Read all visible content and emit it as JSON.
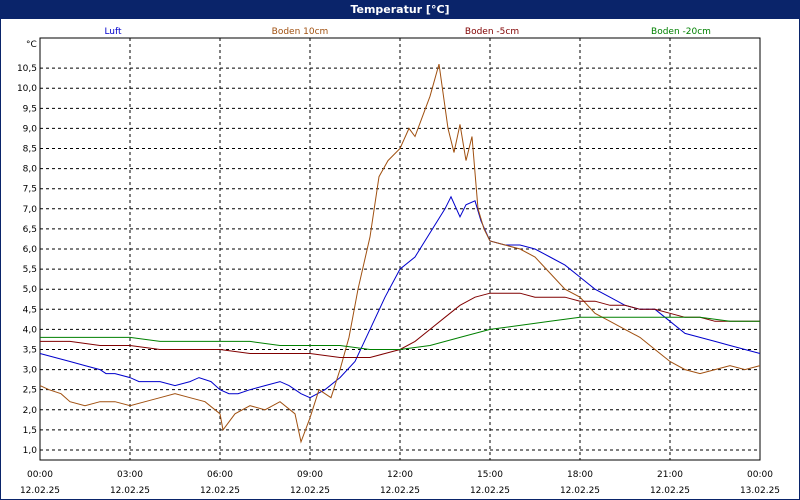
{
  "title": "Temperatur [°C]",
  "colors": {
    "titlebar": "#0a246a",
    "luft": "#0000cc",
    "boden10": "#a05010",
    "boden5": "#800000",
    "boden20": "#008000"
  },
  "chart_data": {
    "type": "line",
    "title": "Temperatur [°C]",
    "ylabel": "°C",
    "ylim": [
      0.75,
      11.25
    ],
    "y_ticks": [
      1.0,
      1.5,
      2.0,
      2.5,
      3.0,
      3.5,
      4.0,
      4.5,
      5.0,
      5.5,
      6.0,
      6.5,
      7.0,
      7.5,
      8.0,
      8.5,
      9.0,
      9.5,
      10.0,
      10.5
    ],
    "y_tick_labels": [
      "1,0",
      "1,5",
      "2,0",
      "2,5",
      "3,0",
      "3,5",
      "4,0",
      "4,5",
      "5,0",
      "5,5",
      "6,0",
      "6,5",
      "7,0",
      "7,5",
      "8,0",
      "8,5",
      "9,0",
      "9,5",
      "10,0",
      "10,5"
    ],
    "xlim": [
      0,
      24
    ],
    "x_ticks": [
      {
        "time": "00:00",
        "date": "12.02.25"
      },
      {
        "time": "03:00",
        "date": "12.02.25"
      },
      {
        "time": "06:00",
        "date": "12.02.25"
      },
      {
        "time": "09:00",
        "date": "12.02.25"
      },
      {
        "time": "12:00",
        "date": "12.02.25"
      },
      {
        "time": "15:00",
        "date": "12.02.25"
      },
      {
        "time": "18:00",
        "date": "12.02.25"
      },
      {
        "time": "21:00",
        "date": "12.02.25"
      },
      {
        "time": "00:00",
        "date": "13.02.25"
      }
    ],
    "grid": true,
    "legend_position": "top",
    "series": [
      {
        "name": "Luft",
        "color": "#0000cc",
        "x": [
          0,
          0.5,
          1,
          1.5,
          2,
          2.2,
          2.5,
          3,
          3.3,
          3.7,
          4,
          4.5,
          5,
          5.3,
          5.7,
          6,
          6.3,
          6.6,
          7,
          7.5,
          8,
          8.3,
          8.7,
          9,
          9.5,
          10,
          10.5,
          11,
          11.5,
          12,
          12.5,
          13,
          13.5,
          13.7,
          14,
          14.2,
          14.5,
          14.7,
          15,
          15.5,
          16,
          16.5,
          17,
          17.5,
          18,
          18.5,
          19,
          19.5,
          20,
          20.5,
          21,
          21.5,
          22,
          22.5,
          23,
          23.5,
          24
        ],
        "values": [
          3.4,
          3.3,
          3.2,
          3.1,
          3.0,
          2.9,
          2.9,
          2.8,
          2.7,
          2.7,
          2.7,
          2.6,
          2.7,
          2.8,
          2.7,
          2.5,
          2.4,
          2.4,
          2.5,
          2.6,
          2.7,
          2.6,
          2.4,
          2.3,
          2.5,
          2.8,
          3.2,
          4.0,
          4.8,
          5.5,
          5.8,
          6.4,
          7.0,
          7.3,
          6.8,
          7.1,
          7.2,
          6.7,
          6.2,
          6.1,
          6.1,
          6.0,
          5.8,
          5.6,
          5.3,
          5.0,
          4.8,
          4.6,
          4.5,
          4.5,
          4.2,
          3.9,
          3.8,
          3.7,
          3.6,
          3.5,
          3.4
        ]
      },
      {
        "name": "Boden 10cm",
        "color": "#a05010",
        "x": [
          0,
          0.3,
          0.7,
          1,
          1.5,
          2,
          2.5,
          3,
          3.5,
          4,
          4.5,
          5,
          5.5,
          6,
          6.1,
          6.5,
          7,
          7.5,
          8,
          8.5,
          8.7,
          9,
          9.3,
          9.7,
          10,
          10.3,
          10.6,
          11,
          11.3,
          11.6,
          12,
          12.3,
          12.5,
          12.7,
          13,
          13.3,
          13.6,
          13.8,
          14,
          14.2,
          14.4,
          14.6,
          14.8,
          15,
          15.5,
          16,
          16.5,
          17,
          17.5,
          18,
          18.5,
          19,
          19.5,
          20,
          20.5,
          21,
          21.5,
          22,
          22.5,
          23,
          23.5,
          24
        ],
        "values": [
          2.6,
          2.5,
          2.4,
          2.2,
          2.1,
          2.2,
          2.2,
          2.1,
          2.2,
          2.3,
          2.4,
          2.3,
          2.2,
          1.9,
          1.5,
          1.9,
          2.1,
          2.0,
          2.2,
          1.9,
          1.2,
          1.8,
          2.5,
          2.3,
          3.0,
          3.8,
          5.0,
          6.3,
          7.8,
          8.2,
          8.5,
          9.0,
          8.8,
          9.2,
          9.8,
          10.6,
          9.0,
          8.4,
          9.1,
          8.2,
          8.8,
          7.0,
          6.5,
          6.2,
          6.1,
          6.0,
          5.8,
          5.4,
          5.0,
          4.8,
          4.4,
          4.2,
          4.0,
          3.8,
          3.5,
          3.2,
          3.0,
          2.9,
          3.0,
          3.1,
          3.0,
          3.1
        ]
      },
      {
        "name": "Boden -5cm",
        "color": "#800000",
        "x": [
          0,
          1,
          2,
          3,
          4,
          5,
          6,
          7,
          8,
          9,
          10,
          10.5,
          11,
          11.5,
          12,
          12.5,
          13,
          13.5,
          14,
          14.5,
          15,
          15.5,
          16,
          16.5,
          17,
          17.5,
          18,
          18.5,
          19,
          19.5,
          20,
          20.5,
          21,
          21.5,
          22,
          22.5,
          23,
          23.5,
          24
        ],
        "values": [
          3.7,
          3.7,
          3.6,
          3.6,
          3.5,
          3.5,
          3.5,
          3.4,
          3.4,
          3.4,
          3.3,
          3.3,
          3.3,
          3.4,
          3.5,
          3.7,
          4.0,
          4.3,
          4.6,
          4.8,
          4.9,
          4.9,
          4.9,
          4.8,
          4.8,
          4.8,
          4.7,
          4.7,
          4.6,
          4.6,
          4.5,
          4.5,
          4.4,
          4.3,
          4.3,
          4.2,
          4.2,
          4.2,
          4.2
        ]
      },
      {
        "name": "Boden -20cm",
        "color": "#008000",
        "x": [
          0,
          1,
          2,
          3,
          4,
          5,
          6,
          7,
          8,
          9,
          10,
          11,
          12,
          13,
          14,
          15,
          16,
          17,
          18,
          19,
          20,
          21,
          22,
          23,
          24
        ],
        "values": [
          3.8,
          3.8,
          3.8,
          3.8,
          3.7,
          3.7,
          3.7,
          3.7,
          3.6,
          3.6,
          3.6,
          3.5,
          3.5,
          3.6,
          3.8,
          4.0,
          4.1,
          4.2,
          4.3,
          4.3,
          4.3,
          4.3,
          4.3,
          4.2,
          4.2
        ]
      }
    ]
  }
}
